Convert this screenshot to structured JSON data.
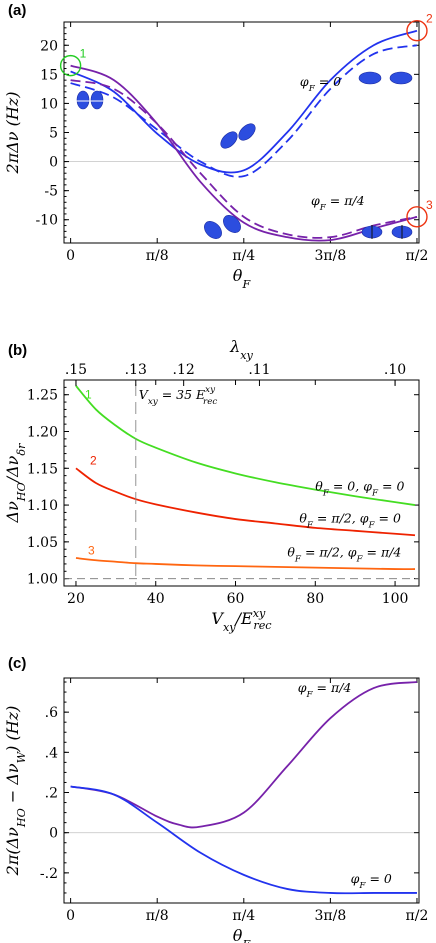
{
  "chart_data": [
    {
      "panel": "(a)",
      "type": "line",
      "xlabel": "θF",
      "ylabel": "2πΔν (Hz)",
      "x_ticks": [
        {
          "value": 0,
          "label": "0"
        },
        {
          "value": 0.3927,
          "label": "π/8"
        },
        {
          "value": 0.7854,
          "label": "π/4"
        },
        {
          "value": 1.1781,
          "label": "3π/8"
        },
        {
          "value": 1.5708,
          "label": "π/2"
        }
      ],
      "y_ticks": [
        -10,
        -5,
        0,
        5,
        10,
        15,
        20
      ],
      "xlim": [
        -0.03,
        1.58
      ],
      "ylim": [
        -14,
        24
      ],
      "colors": {
        "phi0": "#2233ee",
        "phi_pi4": "#7722aa",
        "marker1": "#22cc22",
        "marker2": "#ee3311",
        "marker3": "#ee3311"
      },
      "series": [
        {
          "name": "φF = 0",
          "style": "solid",
          "color": "#2233ee",
          "x": [
            0,
            0.19635,
            0.3927,
            0.58905,
            0.7854,
            0.98175,
            1.1781,
            1.37445,
            1.5708
          ],
          "y": [
            15.5,
            12.0,
            4.8,
            -0.5,
            -1.5,
            5.0,
            14.0,
            20.0,
            22.5
          ]
        },
        {
          "name": "",
          "style": "dashed",
          "color": "#2233ee",
          "x": [
            0,
            0.19635,
            0.3927,
            0.58905,
            0.7854,
            0.98175,
            1.1781,
            1.37445,
            1.5708
          ],
          "y": [
            13.5,
            11.0,
            5.5,
            0.0,
            -2.5,
            3.5,
            12.5,
            18.5,
            20.0
          ]
        },
        {
          "name": "φF = π/4",
          "style": "solid",
          "color": "#7722aa",
          "x": [
            0,
            0.19635,
            0.3927,
            0.58905,
            0.7854,
            0.98175,
            1.1781,
            1.37445,
            1.5708
          ],
          "y": [
            16.5,
            14.0,
            6.5,
            -3.5,
            -10.5,
            -13.0,
            -13.5,
            -11.5,
            -9.5
          ]
        },
        {
          "name": "",
          "style": "dashed",
          "color": "#7722aa",
          "x": [
            0,
            0.19635,
            0.3927,
            0.58905,
            0.7854,
            0.98175,
            1.1781,
            1.37445,
            1.5708
          ],
          "y": [
            14.0,
            12.5,
            6.5,
            -2.0,
            -9.5,
            -12.5,
            -13.0,
            -11.0,
            -9.5
          ]
        }
      ],
      "annotations": [
        {
          "text": "φF = 0",
          "x": 1.04,
          "y": 13.0
        },
        {
          "text": "φF = π/4",
          "x": 1.09,
          "y": -7.5
        }
      ],
      "markers": [
        {
          "label": "1",
          "x": 0,
          "y": 16.5,
          "color": "#22cc22"
        },
        {
          "label": "2",
          "x": 1.5708,
          "y": 22.5,
          "color": "#ee3311"
        },
        {
          "label": "3",
          "x": 1.5708,
          "y": -9.5,
          "color": "#ee3311"
        }
      ]
    },
    {
      "panel": "(b)",
      "type": "line",
      "xlabel": "Vxy/E",
      "xlabel_sup": "xy",
      "xlabel_sub": "rec",
      "ylabel": "ΔνHO/Δνδr",
      "top_xlabel": "λxy",
      "x_ticks": [
        20,
        40,
        60,
        80,
        100
      ],
      "y_ticks": [
        "1.00",
        "1.05",
        "1.10",
        "1.15",
        "1.20",
        "1.25"
      ],
      "top_ticks": [
        {
          "value": 20,
          "label": ".15"
        },
        {
          "value": 35,
          "label": ".13"
        },
        {
          "value": 47,
          "label": ".12"
        },
        {
          "value": 66,
          "label": ".11"
        },
        {
          "value": 100,
          "label": ".10"
        }
      ],
      "xlim": [
        17,
        106
      ],
      "ylim": [
        0.99,
        1.27
      ],
      "vline": {
        "x": 35,
        "label": "Vxy = 35 E",
        "label_sup": "xy",
        "label_sub": "rec"
      },
      "series": [
        {
          "name": "1",
          "color": "#44dd22",
          "x": [
            20,
            25,
            30,
            35,
            40,
            50,
            60,
            70,
            80,
            90,
            100,
            105
          ],
          "y": [
            1.262,
            1.23,
            1.208,
            1.19,
            1.178,
            1.158,
            1.143,
            1.131,
            1.121,
            1.112,
            1.104,
            1.1
          ]
        },
        {
          "name": "2",
          "color": "#ee2200",
          "x": [
            20,
            25,
            30,
            35,
            40,
            50,
            60,
            70,
            80,
            90,
            100,
            105
          ],
          "y": [
            1.15,
            1.13,
            1.118,
            1.108,
            1.101,
            1.09,
            1.081,
            1.075,
            1.069,
            1.065,
            1.061,
            1.059
          ]
        },
        {
          "name": "3",
          "color": "#ff6611",
          "x": [
            20,
            25,
            30,
            35,
            40,
            50,
            60,
            70,
            80,
            90,
            100,
            105
          ],
          "y": [
            1.028,
            1.025,
            1.023,
            1.021,
            1.02,
            1.018,
            1.017,
            1.016,
            1.015,
            1.014,
            1.013,
            1.013
          ]
        }
      ],
      "annotations": [
        {
          "text": "θF = 0, φF = 0",
          "x": 80,
          "y": 1.12
        },
        {
          "text": "θF = π/2, φF = 0",
          "x": 76,
          "y": 1.076
        },
        {
          "text": "θF = π/2, φF = π/4",
          "x": 73,
          "y": 1.03
        }
      ]
    },
    {
      "panel": "(c)",
      "type": "line",
      "xlabel": "θF",
      "ylabel": "2π(ΔνHO − ΔνW) (Hz)",
      "x_ticks": [
        {
          "value": 0,
          "label": "0"
        },
        {
          "value": 0.3927,
          "label": "π/8"
        },
        {
          "value": 0.7854,
          "label": "π/4"
        },
        {
          "value": 1.1781,
          "label": "3π/8"
        },
        {
          "value": 1.5708,
          "label": "π/2"
        }
      ],
      "y_ticks": [
        "-.2",
        "0",
        ".2",
        ".4",
        ".6"
      ],
      "xlim": [
        -0.03,
        1.58
      ],
      "ylim": [
        -0.35,
        0.77
      ],
      "series": [
        {
          "name": "φF = π/4",
          "color": "#7722aa",
          "x": [
            0,
            0.19635,
            0.3927,
            0.49,
            0.58905,
            0.7854,
            0.98175,
            1.1781,
            1.37445,
            1.5708
          ],
          "y": [
            0.23,
            0.19,
            0.08,
            0.04,
            0.03,
            0.1,
            0.33,
            0.57,
            0.72,
            0.75
          ]
        },
        {
          "name": "φF = 0",
          "color": "#2233ee",
          "x": [
            0,
            0.19635,
            0.3927,
            0.58905,
            0.7854,
            0.98175,
            1.1781,
            1.37445,
            1.5708
          ],
          "y": [
            0.23,
            0.19,
            0.05,
            -0.1,
            -0.21,
            -0.28,
            -0.3,
            -0.3,
            -0.3
          ]
        }
      ],
      "annotations": [
        {
          "text": "φF = π/4",
          "x": 1.03,
          "y": 0.7
        },
        {
          "text": "φF = 0",
          "x": 1.27,
          "y": -0.25
        }
      ]
    }
  ]
}
